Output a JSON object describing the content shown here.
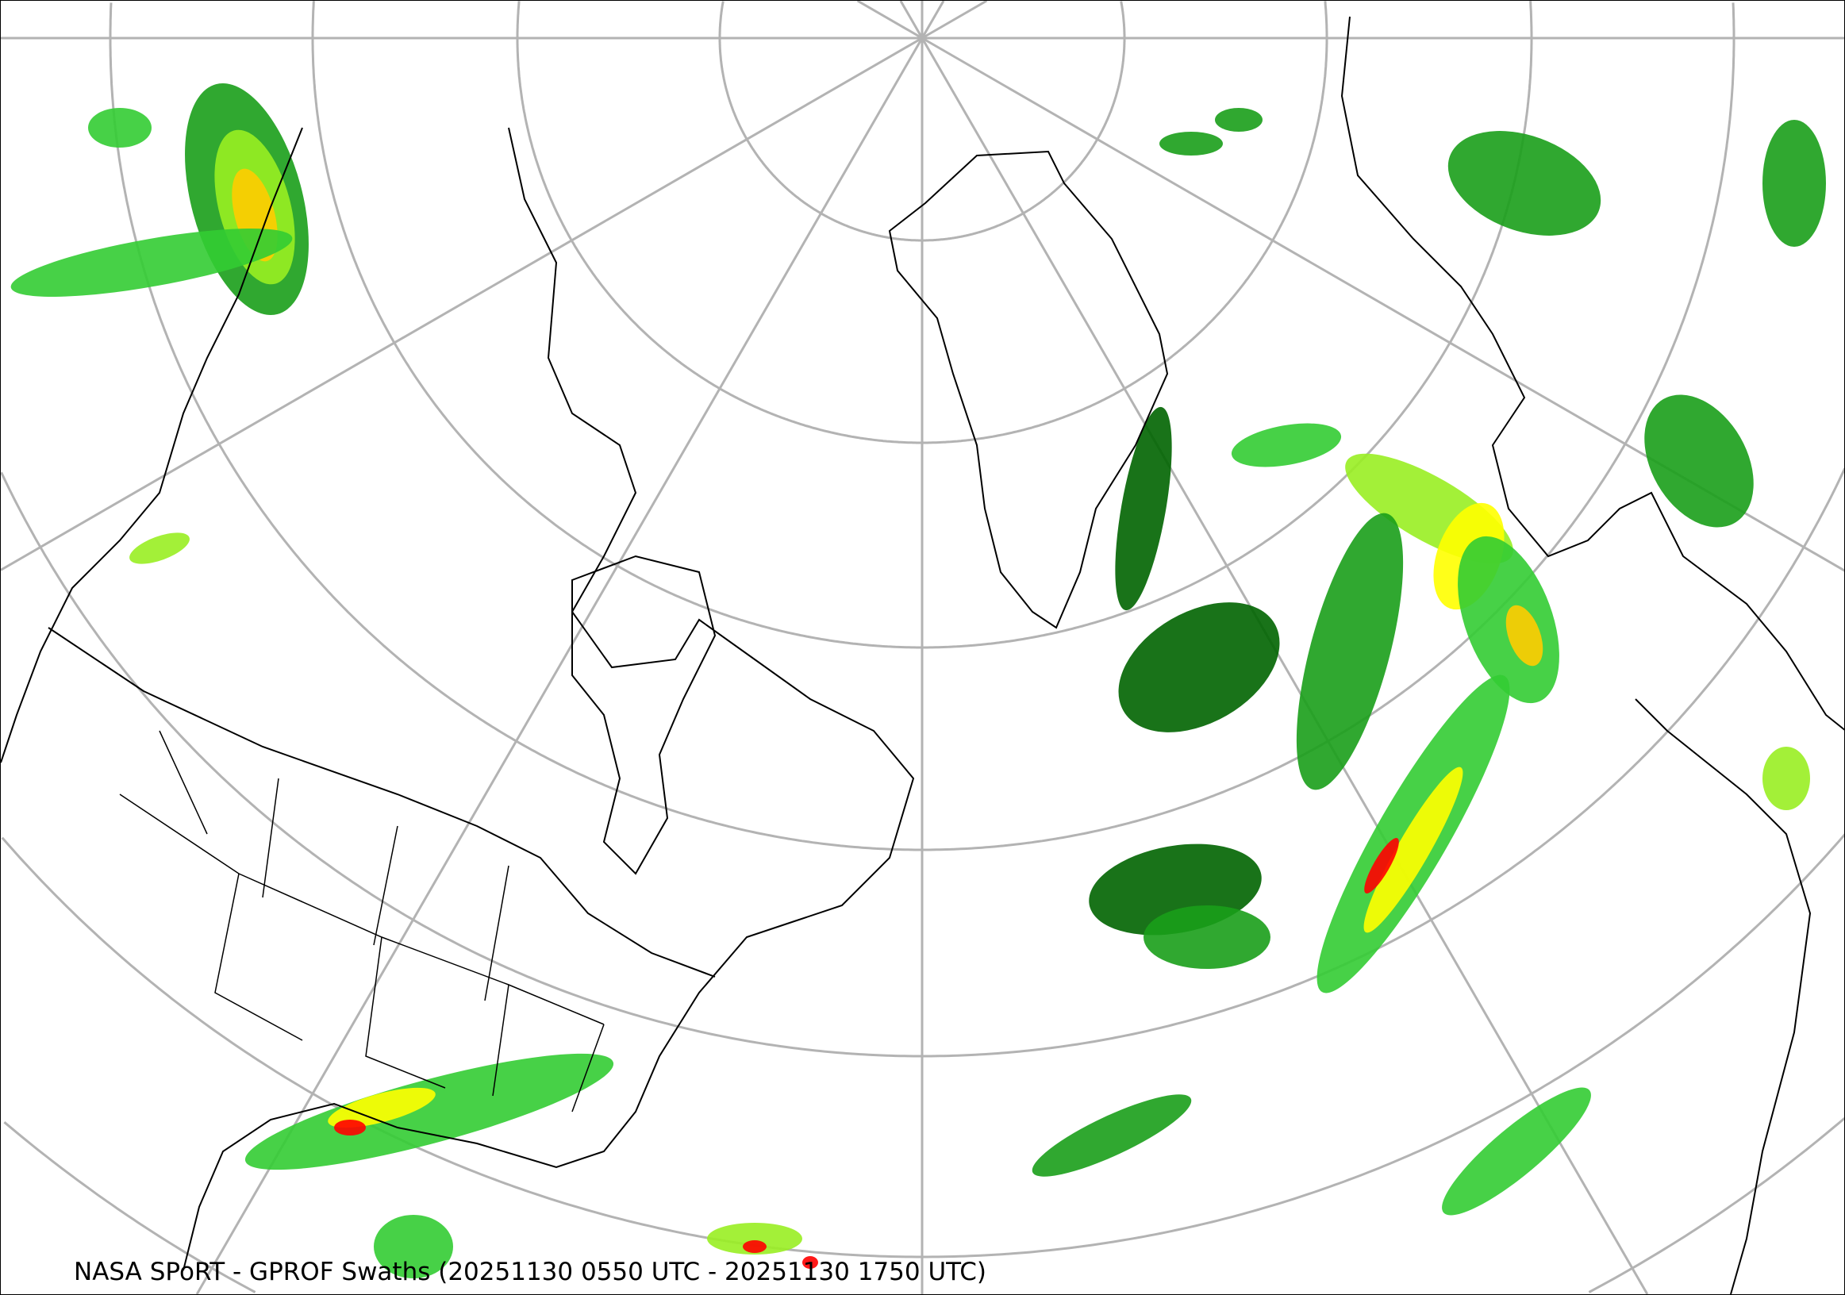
{
  "map": {
    "caption": "NASA SPoRT - GPROF Swaths (20251130 0550 UTC - 20251130 1750 UTC)",
    "projection": "north-polar-stereographic",
    "graticule_color": "#b3b3b3",
    "coastline_color": "#000000",
    "precip_colors": [
      "#006400",
      "#1a9e1a",
      "#33cc33",
      "#99ee22",
      "#ffff00",
      "#ffcc00",
      "#ff8800",
      "#ff0000"
    ]
  }
}
